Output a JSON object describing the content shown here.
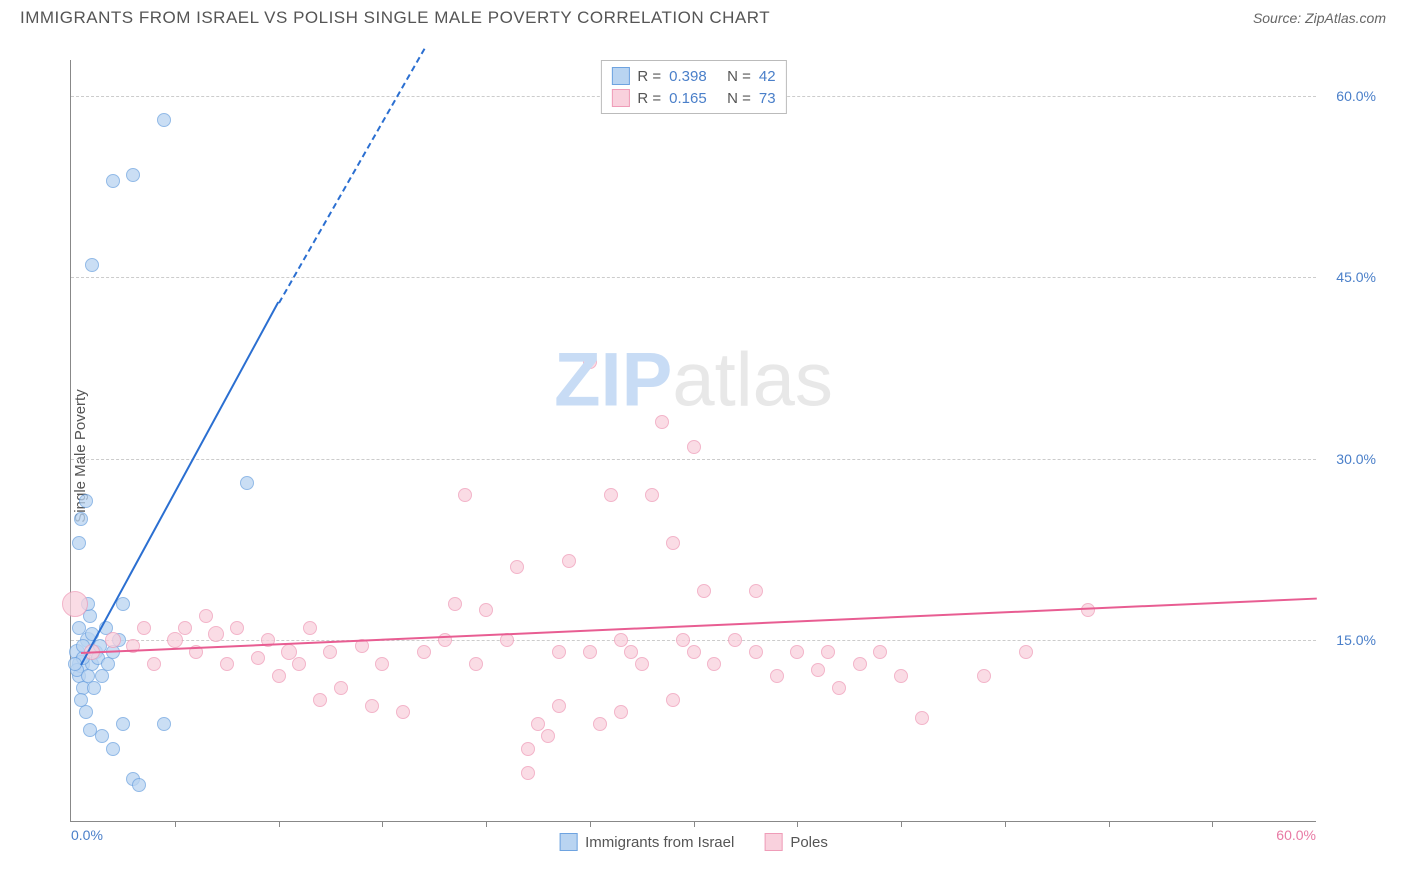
{
  "title": "IMMIGRANTS FROM ISRAEL VS POLISH SINGLE MALE POVERTY CORRELATION CHART",
  "source_label": "Source:",
  "source_name": "ZipAtlas.com",
  "ylabel": "Single Male Poverty",
  "watermark_zip": "ZIP",
  "watermark_rest": "atlas",
  "chart": {
    "type": "scatter",
    "xlim": [
      0,
      60
    ],
    "ylim": [
      0,
      63
    ],
    "x_ticks": [
      0,
      60
    ],
    "x_tick_labels": [
      "0.0%",
      "60.0%"
    ],
    "x_minor_marks": [
      5,
      10,
      15,
      20,
      25,
      30,
      35,
      40,
      45,
      50,
      55
    ],
    "y_ticks": [
      15,
      30,
      45,
      60
    ],
    "y_tick_labels": [
      "15.0%",
      "30.0%",
      "45.0%",
      "60.0%"
    ],
    "tick_color_x0": "#4a7fc9",
    "tick_color_y": "#4a7fc9",
    "tick_color_x60": "#e87aa4",
    "grid_color": "#cccccc",
    "series": [
      {
        "name": "Immigrants from Israel",
        "fill": "#b9d4f1",
        "stroke": "#6ea3e0",
        "trend_color": "#2b6fd1",
        "r_value": "0.398",
        "n_value": "42",
        "trend": {
          "x1": 0.5,
          "y1": 13,
          "x2": 10,
          "y2": 43,
          "x2_dash": 17,
          "y2_dash": 64
        },
        "points": [
          {
            "x": 0.3,
            "y": 14,
            "r": 8
          },
          {
            "x": 0.4,
            "y": 12,
            "r": 7
          },
          {
            "x": 0.5,
            "y": 13,
            "r": 9
          },
          {
            "x": 0.6,
            "y": 11,
            "r": 7
          },
          {
            "x": 0.8,
            "y": 15,
            "r": 8
          },
          {
            "x": 1.0,
            "y": 13,
            "r": 7
          },
          {
            "x": 0.5,
            "y": 10,
            "r": 7
          },
          {
            "x": 0.7,
            "y": 9,
            "r": 7
          },
          {
            "x": 1.2,
            "y": 14,
            "r": 7
          },
          {
            "x": 1.5,
            "y": 12,
            "r": 7
          },
          {
            "x": 0.4,
            "y": 16,
            "r": 7
          },
          {
            "x": 0.9,
            "y": 17,
            "r": 7
          },
          {
            "x": 1.3,
            "y": 13.5,
            "r": 7
          },
          {
            "x": 0.6,
            "y": 13.5,
            "r": 7
          },
          {
            "x": 1.1,
            "y": 11,
            "r": 7
          },
          {
            "x": 1.8,
            "y": 13,
            "r": 7
          },
          {
            "x": 2.0,
            "y": 14,
            "r": 7
          },
          {
            "x": 2.3,
            "y": 15,
            "r": 7
          },
          {
            "x": 0.8,
            "y": 18,
            "r": 7
          },
          {
            "x": 1.0,
            "y": 15.5,
            "r": 7
          },
          {
            "x": 1.7,
            "y": 16,
            "r": 7
          },
          {
            "x": 2.5,
            "y": 8,
            "r": 7
          },
          {
            "x": 3.0,
            "y": 3.5,
            "r": 7
          },
          {
            "x": 1.5,
            "y": 7,
            "r": 7
          },
          {
            "x": 2.0,
            "y": 6,
            "r": 7
          },
          {
            "x": 0.9,
            "y": 7.5,
            "r": 7
          },
          {
            "x": 4.5,
            "y": 8,
            "r": 7
          },
          {
            "x": 3.3,
            "y": 3,
            "r": 7
          },
          {
            "x": 0.5,
            "y": 25,
            "r": 7
          },
          {
            "x": 0.7,
            "y": 26.5,
            "r": 7
          },
          {
            "x": 2.5,
            "y": 18,
            "r": 7
          },
          {
            "x": 0.4,
            "y": 23,
            "r": 7
          },
          {
            "x": 8.5,
            "y": 28,
            "r": 7
          },
          {
            "x": 1.0,
            "y": 46,
            "r": 7
          },
          {
            "x": 2.0,
            "y": 53,
            "r": 7
          },
          {
            "x": 3.0,
            "y": 53.5,
            "r": 7
          },
          {
            "x": 4.5,
            "y": 58,
            "r": 7
          },
          {
            "x": 0.3,
            "y": 12.5,
            "r": 7
          },
          {
            "x": 0.6,
            "y": 14.5,
            "r": 7
          },
          {
            "x": 1.4,
            "y": 14.5,
            "r": 7
          },
          {
            "x": 0.2,
            "y": 13,
            "r": 7
          },
          {
            "x": 0.8,
            "y": 12,
            "r": 7
          }
        ]
      },
      {
        "name": "Poles",
        "fill": "#f9d1dd",
        "stroke": "#ef9cb8",
        "trend_color": "#e85d92",
        "r_value": "0.165",
        "n_value": "73",
        "trend": {
          "x1": 0.5,
          "y1": 14,
          "x2": 60,
          "y2": 18.5
        },
        "points": [
          {
            "x": 0.2,
            "y": 18,
            "r": 13
          },
          {
            "x": 1,
            "y": 14,
            "r": 8
          },
          {
            "x": 2,
            "y": 15,
            "r": 8
          },
          {
            "x": 3,
            "y": 14.5,
            "r": 7
          },
          {
            "x": 4,
            "y": 13,
            "r": 7
          },
          {
            "x": 5,
            "y": 15,
            "r": 8
          },
          {
            "x": 5.5,
            "y": 16,
            "r": 7
          },
          {
            "x": 6,
            "y": 14,
            "r": 7
          },
          {
            "x": 7,
            "y": 15.5,
            "r": 8
          },
          {
            "x": 7.5,
            "y": 13,
            "r": 7
          },
          {
            "x": 8,
            "y": 16,
            "r": 7
          },
          {
            "x": 9,
            "y": 13.5,
            "r": 7
          },
          {
            "x": 9.5,
            "y": 15,
            "r": 7
          },
          {
            "x": 10,
            "y": 12,
            "r": 7
          },
          {
            "x": 10.5,
            "y": 14,
            "r": 8
          },
          {
            "x": 11,
            "y": 13,
            "r": 7
          },
          {
            "x": 11.5,
            "y": 16,
            "r": 7
          },
          {
            "x": 12,
            "y": 10,
            "r": 7
          },
          {
            "x": 12.5,
            "y": 14,
            "r": 7
          },
          {
            "x": 13,
            "y": 11,
            "r": 7
          },
          {
            "x": 14,
            "y": 14.5,
            "r": 7
          },
          {
            "x": 14.5,
            "y": 9.5,
            "r": 7
          },
          {
            "x": 15,
            "y": 13,
            "r": 7
          },
          {
            "x": 16,
            "y": 9,
            "r": 7
          },
          {
            "x": 17,
            "y": 14,
            "r": 7
          },
          {
            "x": 18,
            "y": 15,
            "r": 7
          },
          {
            "x": 18.5,
            "y": 18,
            "r": 7
          },
          {
            "x": 19,
            "y": 27,
            "r": 7
          },
          {
            "x": 19.5,
            "y": 13,
            "r": 7
          },
          {
            "x": 20,
            "y": 17.5,
            "r": 7
          },
          {
            "x": 21,
            "y": 15,
            "r": 7
          },
          {
            "x": 21.5,
            "y": 21,
            "r": 7
          },
          {
            "x": 22,
            "y": 4,
            "r": 7
          },
          {
            "x": 22.5,
            "y": 8,
            "r": 7
          },
          {
            "x": 23,
            "y": 7,
            "r": 7
          },
          {
            "x": 23.5,
            "y": 14,
            "r": 7
          },
          {
            "x": 23.5,
            "y": 9.5,
            "r": 7
          },
          {
            "x": 24,
            "y": 21.5,
            "r": 7
          },
          {
            "x": 25,
            "y": 14,
            "r": 7
          },
          {
            "x": 25,
            "y": 38,
            "r": 7
          },
          {
            "x": 25.5,
            "y": 8,
            "r": 7
          },
          {
            "x": 26,
            "y": 27,
            "r": 7
          },
          {
            "x": 26.5,
            "y": 15,
            "r": 7
          },
          {
            "x": 26.5,
            "y": 9,
            "r": 7
          },
          {
            "x": 27,
            "y": 14,
            "r": 7
          },
          {
            "x": 27.5,
            "y": 13,
            "r": 7
          },
          {
            "x": 28,
            "y": 27,
            "r": 7
          },
          {
            "x": 28.5,
            "y": 33,
            "r": 7
          },
          {
            "x": 29,
            "y": 10,
            "r": 7
          },
          {
            "x": 29,
            "y": 23,
            "r": 7
          },
          {
            "x": 29.5,
            "y": 15,
            "r": 7
          },
          {
            "x": 30,
            "y": 14,
            "r": 7
          },
          {
            "x": 30,
            "y": 31,
            "r": 7
          },
          {
            "x": 30.5,
            "y": 19,
            "r": 7
          },
          {
            "x": 31,
            "y": 13,
            "r": 7
          },
          {
            "x": 32,
            "y": 15,
            "r": 7
          },
          {
            "x": 33,
            "y": 14,
            "r": 7
          },
          {
            "x": 33,
            "y": 19,
            "r": 7
          },
          {
            "x": 34,
            "y": 12,
            "r": 7
          },
          {
            "x": 35,
            "y": 14,
            "r": 7
          },
          {
            "x": 36,
            "y": 12.5,
            "r": 7
          },
          {
            "x": 36.5,
            "y": 14,
            "r": 7
          },
          {
            "x": 37,
            "y": 11,
            "r": 7
          },
          {
            "x": 38,
            "y": 13,
            "r": 7
          },
          {
            "x": 39,
            "y": 14,
            "r": 7
          },
          {
            "x": 40,
            "y": 12,
            "r": 7
          },
          {
            "x": 41,
            "y": 8.5,
            "r": 7
          },
          {
            "x": 44,
            "y": 12,
            "r": 7
          },
          {
            "x": 46,
            "y": 14,
            "r": 7
          },
          {
            "x": 49,
            "y": 17.5,
            "r": 7
          },
          {
            "x": 22,
            "y": 6,
            "r": 7
          },
          {
            "x": 3.5,
            "y": 16,
            "r": 7
          },
          {
            "x": 6.5,
            "y": 17,
            "r": 7
          }
        ]
      }
    ],
    "legend_top": {
      "r_label": "R =",
      "n_label": "N ="
    },
    "legend_bottom": [
      "Immigrants from Israel",
      "Poles"
    ]
  }
}
